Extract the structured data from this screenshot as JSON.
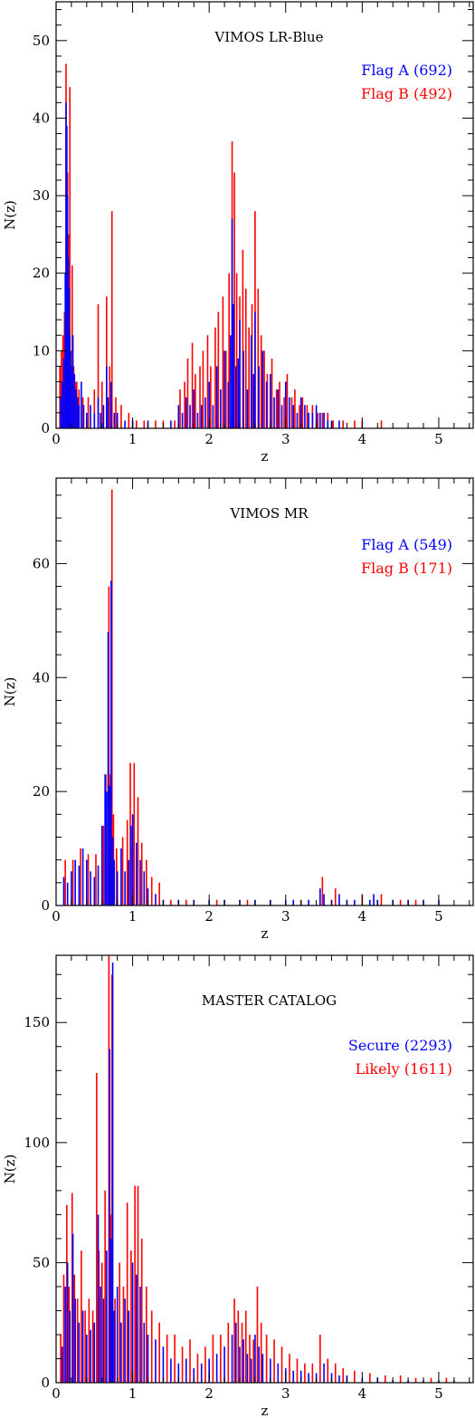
{
  "colors": {
    "blue": "#0000ff",
    "red": "#ff0000",
    "axis": "#000000"
  },
  "chart_data": [
    {
      "type": "bar",
      "title": "VIMOS LR-Blue",
      "xlabel": "z",
      "ylabel": "N(z)",
      "xlim": [
        0,
        5.45
      ],
      "ylim": [
        0,
        55
      ],
      "xticks": [
        0,
        1,
        2,
        3,
        4,
        5
      ],
      "yticks": [
        0,
        10,
        20,
        30,
        40,
        50
      ],
      "bin_width": 0.01,
      "series": [
        {
          "name": "Flag A (692)",
          "color": "#0000ff",
          "x": [
            0.06,
            0.08,
            0.1,
            0.12,
            0.13,
            0.14,
            0.15,
            0.16,
            0.17,
            0.18,
            0.19,
            0.2,
            0.22,
            0.24,
            0.26,
            0.28,
            0.3,
            0.33,
            0.36,
            0.4,
            0.45,
            0.5,
            0.55,
            0.58,
            0.62,
            0.66,
            0.68,
            0.72,
            0.76,
            0.8,
            0.9,
            1.0,
            1.2,
            1.5,
            1.6,
            1.65,
            1.7,
            1.75,
            1.8,
            1.85,
            1.9,
            1.95,
            2.0,
            2.05,
            2.1,
            2.15,
            2.2,
            2.25,
            2.28,
            2.3,
            2.32,
            2.35,
            2.38,
            2.4,
            2.45,
            2.5,
            2.55,
            2.58,
            2.6,
            2.65,
            2.7,
            2.75,
            2.8,
            2.85,
            2.9,
            2.95,
            3.0,
            3.05,
            3.1,
            3.15,
            3.2,
            3.25,
            3.3,
            3.35,
            3.4,
            3.45,
            3.5,
            3.55,
            3.6,
            3.7
          ],
          "values": [
            4,
            6,
            9,
            20,
            42,
            39,
            30,
            22,
            18,
            12,
            10,
            8,
            12,
            7,
            5,
            4,
            3,
            6,
            3,
            2,
            3,
            2,
            4,
            2,
            3,
            8,
            4,
            6,
            2,
            2,
            1,
            1,
            1,
            1,
            3,
            2,
            4,
            3,
            5,
            2,
            3,
            4,
            6,
            3,
            8,
            5,
            10,
            6,
            12,
            27,
            16,
            8,
            9,
            14,
            10,
            5,
            12,
            7,
            15,
            8,
            10,
            6,
            7,
            4,
            5,
            3,
            6,
            4,
            3,
            2,
            4,
            3,
            2,
            2,
            3,
            2,
            2,
            1,
            1,
            1
          ]
        },
        {
          "name": "Flag B (492)",
          "color": "#ff0000",
          "x": [
            0.05,
            0.07,
            0.09,
            0.11,
            0.13,
            0.15,
            0.16,
            0.18,
            0.21,
            0.23,
            0.25,
            0.27,
            0.3,
            0.35,
            0.42,
            0.5,
            0.55,
            0.6,
            0.66,
            0.7,
            0.73,
            0.78,
            0.85,
            0.95,
            1.05,
            1.15,
            1.3,
            1.4,
            1.55,
            1.62,
            1.68,
            1.72,
            1.78,
            1.82,
            1.88,
            1.92,
            1.98,
            2.02,
            2.08,
            2.12,
            2.18,
            2.22,
            2.26,
            2.3,
            2.33,
            2.36,
            2.4,
            2.44,
            2.48,
            2.52,
            2.56,
            2.6,
            2.64,
            2.68,
            2.72,
            2.76,
            2.82,
            2.88,
            2.92,
            2.98,
            3.02,
            3.08,
            3.12,
            3.18,
            3.22,
            3.28,
            3.35,
            3.42,
            3.48,
            3.55,
            3.62,
            3.75,
            3.9,
            4.0,
            4.25
          ],
          "values": [
            8,
            10,
            12,
            15,
            47,
            33,
            25,
            44,
            21,
            8,
            6,
            6,
            5,
            4,
            4,
            5,
            16,
            6,
            17,
            8,
            28,
            4,
            3,
            2,
            1,
            1,
            1,
            1,
            1,
            5,
            6,
            9,
            11,
            7,
            8,
            10,
            12,
            8,
            13,
            15,
            17,
            10,
            20,
            37,
            33,
            20,
            17,
            23,
            18,
            13,
            16,
            28,
            18,
            12,
            10,
            7,
            9,
            5,
            6,
            4,
            7,
            4,
            5,
            3,
            4,
            3,
            3,
            2,
            2,
            2,
            1,
            1,
            1,
            1,
            1
          ]
        }
      ],
      "legend_placement": "top-right"
    },
    {
      "type": "bar",
      "title": "VIMOS MR",
      "xlabel": "z",
      "ylabel": "N(z)",
      "xlim": [
        0,
        5.45
      ],
      "ylim": [
        0,
        75
      ],
      "xticks": [
        0,
        1,
        2,
        3,
        4,
        5
      ],
      "yticks": [
        0,
        20,
        40,
        60
      ],
      "bin_width": 0.01,
      "series": [
        {
          "name": "Flag A (549)",
          "color": "#0000ff",
          "x": [
            0.1,
            0.15,
            0.2,
            0.25,
            0.3,
            0.35,
            0.4,
            0.45,
            0.5,
            0.55,
            0.6,
            0.64,
            0.66,
            0.68,
            0.7,
            0.72,
            0.74,
            0.76,
            0.8,
            0.85,
            0.9,
            0.95,
            0.98,
            1.0,
            1.05,
            1.1,
            1.15,
            1.2,
            1.3,
            1.4,
            1.6,
            1.8,
            2.0,
            2.2,
            2.4,
            2.6,
            2.8,
            3.0,
            3.1,
            3.3,
            3.45,
            3.5,
            3.6,
            3.7,
            3.8,
            3.9,
            4.1,
            4.15,
            4.2,
            4.4,
            4.6,
            4.8,
            5.0
          ],
          "values": [
            5,
            4,
            6,
            8,
            7,
            10,
            8,
            6,
            5,
            7,
            14,
            23,
            20,
            48,
            21,
            57,
            12,
            8,
            6,
            10,
            6,
            8,
            14,
            16,
            11,
            8,
            6,
            3,
            2,
            1,
            1,
            1,
            1,
            1,
            1,
            1,
            1,
            1,
            1,
            1,
            3,
            2,
            1,
            2,
            1,
            1,
            1,
            2,
            1,
            1,
            1,
            1,
            1
          ]
        },
        {
          "name": "Flag B (171)",
          "color": "#ff0000",
          "x": [
            0.12,
            0.22,
            0.32,
            0.42,
            0.52,
            0.62,
            0.65,
            0.69,
            0.71,
            0.73,
            0.75,
            0.79,
            0.87,
            0.93,
            0.97,
            1.02,
            1.07,
            1.12,
            1.18,
            1.25,
            1.35,
            1.5,
            1.7,
            2.1,
            2.5,
            3.2,
            3.48,
            3.65,
            4.0,
            4.25,
            4.5,
            4.7
          ],
          "values": [
            8,
            8,
            10,
            9,
            9,
            14,
            23,
            56,
            23,
            73,
            16,
            10,
            12,
            15,
            25,
            25,
            19,
            11,
            8,
            5,
            4,
            1,
            1,
            1,
            1,
            1,
            5,
            3,
            2,
            2,
            1,
            1
          ]
        }
      ],
      "legend_placement": "top-right"
    },
    {
      "type": "bar",
      "title": "MASTER CATALOG",
      "xlabel": "z",
      "ylabel": "N(z)",
      "xlim": [
        0,
        5.45
      ],
      "ylim": [
        0,
        178
      ],
      "xticks": [
        0,
        1,
        2,
        3,
        4,
        5
      ],
      "yticks": [
        0,
        50,
        100,
        150
      ],
      "bin_width": 0.01,
      "series": [
        {
          "name": "Secure (2293)",
          "color": "#0000ff",
          "x": [
            0.08,
            0.12,
            0.15,
            0.18,
            0.22,
            0.25,
            0.3,
            0.35,
            0.4,
            0.45,
            0.5,
            0.55,
            0.58,
            0.62,
            0.66,
            0.7,
            0.72,
            0.74,
            0.76,
            0.8,
            0.85,
            0.9,
            0.95,
            1.0,
            1.05,
            1.1,
            1.15,
            1.2,
            1.3,
            1.4,
            1.5,
            1.6,
            1.7,
            1.8,
            1.9,
            2.0,
            2.1,
            2.2,
            2.3,
            2.35,
            2.4,
            2.45,
            2.5,
            2.55,
            2.6,
            2.65,
            2.7,
            2.8,
            2.9,
            3.0,
            3.1,
            3.2,
            3.3,
            3.4,
            3.5,
            3.6,
            3.7,
            3.8,
            4.0,
            4.2,
            4.4,
            4.6,
            4.8,
            5.0,
            5.2
          ],
          "values": [
            15,
            40,
            50,
            30,
            62,
            35,
            25,
            30,
            20,
            22,
            25,
            70,
            40,
            35,
            55,
            139,
            60,
            175,
            30,
            40,
            25,
            35,
            30,
            50,
            45,
            40,
            25,
            20,
            18,
            15,
            10,
            8,
            10,
            6,
            8,
            10,
            12,
            15,
            20,
            25,
            15,
            18,
            12,
            10,
            20,
            15,
            12,
            10,
            8,
            6,
            5,
            5,
            4,
            4,
            8,
            4,
            3,
            3,
            2,
            2,
            1,
            1,
            1,
            1,
            1
          ]
        },
        {
          "name": "Likely (1611)",
          "color": "#ff0000",
          "x": [
            0.06,
            0.1,
            0.14,
            0.17,
            0.21,
            0.24,
            0.28,
            0.33,
            0.38,
            0.43,
            0.48,
            0.53,
            0.56,
            0.6,
            0.64,
            0.69,
            0.71,
            0.73,
            0.77,
            0.83,
            0.88,
            0.93,
            0.98,
            1.03,
            1.07,
            1.12,
            1.18,
            1.25,
            1.35,
            1.45,
            1.55,
            1.65,
            1.75,
            1.85,
            1.95,
            2.05,
            2.15,
            2.25,
            2.33,
            2.38,
            2.43,
            2.48,
            2.53,
            2.58,
            2.63,
            2.68,
            2.75,
            2.85,
            2.95,
            3.05,
            3.15,
            3.25,
            3.35,
            3.45,
            3.55,
            3.65,
            3.75,
            3.9,
            4.1,
            4.3,
            4.5,
            4.7,
            4.9,
            5.1
          ],
          "values": [
            20,
            45,
            74,
            40,
            79,
            45,
            35,
            55,
            30,
            35,
            30,
            129,
            55,
            50,
            80,
            178,
            70,
            170,
            35,
            50,
            40,
            75,
            55,
            82,
            82,
            60,
            40,
            30,
            25,
            20,
            20,
            15,
            18,
            12,
            15,
            20,
            20,
            25,
            35,
            30,
            25,
            30,
            20,
            18,
            40,
            25,
            20,
            18,
            15,
            12,
            10,
            8,
            8,
            20,
            10,
            8,
            6,
            5,
            4,
            3,
            3,
            2,
            2,
            2
          ]
        }
      ],
      "legend_placement": "top-right"
    }
  ]
}
